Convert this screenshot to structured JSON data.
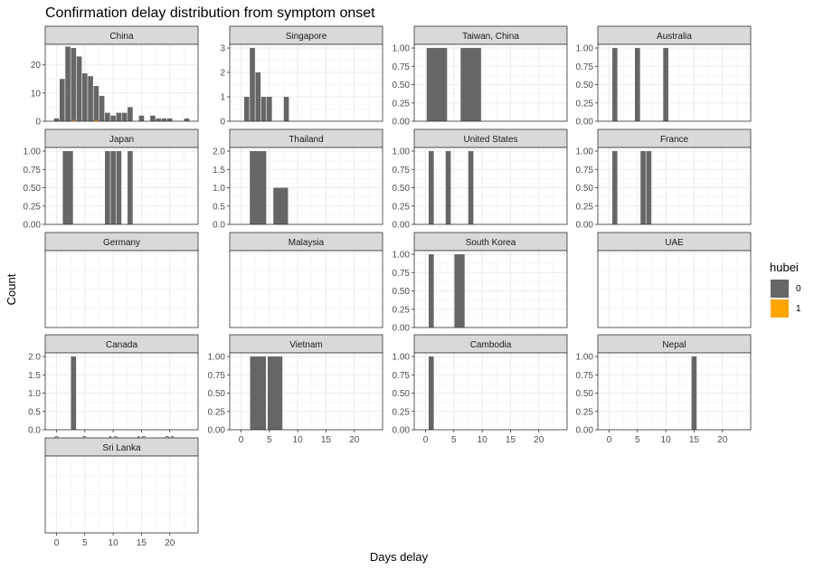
{
  "chart_data": {
    "type": "bar",
    "title": "Confirmation delay distribution from symptom onset",
    "xlabel": "Days delay",
    "ylabel": "Count",
    "xlim": [
      -2,
      25
    ],
    "x_ticks": [
      0,
      5,
      10,
      15,
      20
    ],
    "grid": true,
    "legend": {
      "title": "hubei",
      "position": "right",
      "entries": [
        {
          "label": "0",
          "color": "#666666"
        },
        {
          "label": "1",
          "color": "#FFA500"
        }
      ]
    },
    "panels": [
      {
        "name": "China",
        "y_ticks": [
          0,
          10,
          20
        ],
        "ylim": [
          0,
          27.3
        ],
        "bars": [
          {
            "x": 0,
            "y": 1
          },
          {
            "x": 1,
            "y": 15
          },
          {
            "x": 2,
            "y": 26.5
          },
          {
            "x": 3,
            "y": 26
          },
          {
            "x": 4,
            "y": 23
          },
          {
            "x": 5,
            "y": 17
          },
          {
            "x": 6,
            "y": 16
          },
          {
            "x": 7,
            "y": 12.5
          },
          {
            "x": 8,
            "y": 9
          },
          {
            "x": 9,
            "y": 3
          },
          {
            "x": 10,
            "y": 2
          },
          {
            "x": 11,
            "y": 3
          },
          {
            "x": 12,
            "y": 3
          },
          {
            "x": 13,
            "y": 5
          },
          {
            "x": 15,
            "y": 2
          },
          {
            "x": 17,
            "y": 2
          },
          {
            "x": 18,
            "y": 1
          },
          {
            "x": 19,
            "y": 1
          },
          {
            "x": 20,
            "y": 1
          },
          {
            "x": 23,
            "y": 1
          }
        ],
        "hubei_bars": [
          {
            "x": 3,
            "y": 0.4
          },
          {
            "x": 7,
            "y": 0.4
          }
        ]
      },
      {
        "name": "Singapore",
        "y_ticks": [
          0,
          1,
          2,
          3
        ],
        "ylim": [
          0,
          3.15
        ],
        "bars": [
          {
            "x": 1,
            "y": 1
          },
          {
            "x": 2,
            "y": 3
          },
          {
            "x": 3,
            "y": 2
          },
          {
            "x": 4,
            "y": 1
          },
          {
            "x": 5,
            "y": 1
          },
          {
            "x": 8,
            "y": 1
          }
        ]
      },
      {
        "name": "Taiwan, China",
        "y_ticks": [
          0.0,
          0.25,
          0.5,
          0.75,
          1.0
        ],
        "ylim": [
          0,
          1.05
        ],
        "bars": [
          {
            "x": 2,
            "y": 1,
            "w": 3.6
          },
          {
            "x": 8,
            "y": 1,
            "w": 3.6
          }
        ]
      },
      {
        "name": "Australia",
        "y_ticks": [
          0.0,
          0.25,
          0.5,
          0.75,
          1.0
        ],
        "ylim": [
          0,
          1.05
        ],
        "bars": [
          {
            "x": 1,
            "y": 1
          },
          {
            "x": 5,
            "y": 1
          },
          {
            "x": 10,
            "y": 1
          }
        ]
      },
      {
        "name": "Japan",
        "y_ticks": [
          0.0,
          0.25,
          0.5,
          0.75,
          1.0
        ],
        "ylim": [
          0,
          1.05
        ],
        "bars": [
          {
            "x": 2,
            "y": 1,
            "w": 1.8
          },
          {
            "x": 9,
            "y": 1
          },
          {
            "x": 10,
            "y": 1
          },
          {
            "x": 11,
            "y": 1
          },
          {
            "x": 13,
            "y": 1
          }
        ]
      },
      {
        "name": "Thailand",
        "y_ticks": [
          0.0,
          0.5,
          1.0,
          1.5,
          2.0
        ],
        "ylim": [
          0,
          2.1
        ],
        "bars": [
          {
            "x": 3,
            "y": 2,
            "w": 2.9
          },
          {
            "x": 7,
            "y": 1,
            "w": 2.6
          }
        ]
      },
      {
        "name": "United States",
        "y_ticks": [
          0.0,
          0.25,
          0.5,
          0.75,
          1.0
        ],
        "ylim": [
          0,
          1.05
        ],
        "bars": [
          {
            "x": 1,
            "y": 1
          },
          {
            "x": 4,
            "y": 1
          },
          {
            "x": 8,
            "y": 1
          }
        ]
      },
      {
        "name": "France",
        "y_ticks": [
          0.0,
          0.25,
          0.5,
          0.75,
          1.0
        ],
        "ylim": [
          0,
          1.05
        ],
        "bars": [
          {
            "x": 1,
            "y": 1
          },
          {
            "x": 6,
            "y": 1
          },
          {
            "x": 7,
            "y": 1
          }
        ]
      },
      {
        "name": "Germany",
        "y_ticks": [],
        "ylim": [
          0,
          1.05
        ],
        "bars": []
      },
      {
        "name": "Malaysia",
        "y_ticks": [],
        "ylim": [
          0,
          1.05
        ],
        "bars": []
      },
      {
        "name": "South Korea",
        "y_ticks": [
          0.0,
          0.25,
          0.5,
          0.75,
          1.0
        ],
        "ylim": [
          0,
          1.05
        ],
        "bars": [
          {
            "x": 1,
            "y": 1
          },
          {
            "x": 6,
            "y": 1,
            "w": 1.8
          }
        ]
      },
      {
        "name": "UAE",
        "y_ticks": [],
        "ylim": [
          0,
          1.05
        ],
        "bars": []
      },
      {
        "name": "Canada",
        "y_ticks": [
          0.0,
          0.5,
          1.0,
          1.5,
          2.0
        ],
        "ylim": [
          0,
          2.1
        ],
        "bars": [
          {
            "x": 3,
            "y": 2
          }
        ]
      },
      {
        "name": "Vietnam",
        "y_ticks": [
          0.0,
          0.25,
          0.5,
          0.75,
          1.0
        ],
        "ylim": [
          0,
          1.05
        ],
        "bars": [
          {
            "x": 3,
            "y": 1,
            "w": 2.8
          },
          {
            "x": 6,
            "y": 1,
            "w": 2.6
          }
        ]
      },
      {
        "name": "Cambodia",
        "y_ticks": [
          0.0,
          0.25,
          0.5,
          0.75,
          1.0
        ],
        "ylim": [
          0,
          1.05
        ],
        "bars": [
          {
            "x": 1,
            "y": 1
          }
        ]
      },
      {
        "name": "Nepal",
        "y_ticks": [
          0.0,
          0.25,
          0.5,
          0.75,
          1.0
        ],
        "ylim": [
          0,
          1.05
        ],
        "bars": [
          {
            "x": 15,
            "y": 1
          }
        ]
      },
      {
        "name": "Sri Lanka",
        "y_ticks": [],
        "ylim": [
          0,
          1.05
        ],
        "bars": []
      }
    ]
  }
}
